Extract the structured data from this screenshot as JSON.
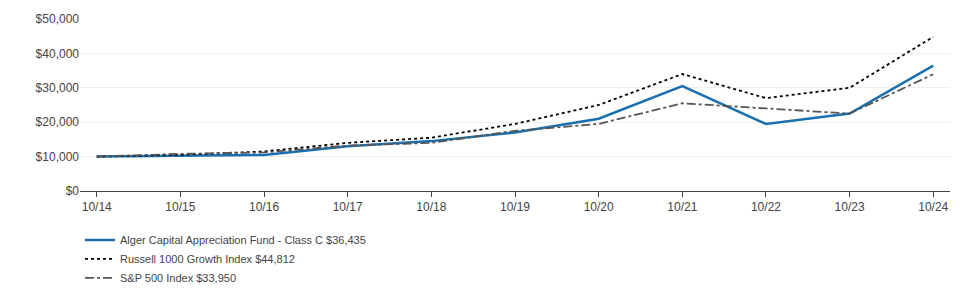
{
  "chart_data": {
    "type": "line",
    "categories": [
      "10/14",
      "10/15",
      "10/16",
      "10/17",
      "10/18",
      "10/19",
      "10/20",
      "10/21",
      "10/22",
      "10/23",
      "10/24"
    ],
    "series": [
      {
        "name": "Alger Capital Appreciation Fund - Class C $36,435",
        "color": "#1a6faf",
        "line_style": "solid",
        "values": [
          10000,
          10200,
          10500,
          13000,
          14500,
          17000,
          21000,
          30500,
          19500,
          22500,
          36435
        ]
      },
      {
        "name": "Russell 1000 Growth Index $44,812",
        "color": "#000000",
        "line_style": "dotted",
        "values": [
          10000,
          10500,
          11500,
          14000,
          15500,
          19500,
          25000,
          34000,
          27000,
          30000,
          44812
        ]
      },
      {
        "name": "S&P 500 Index $33,950",
        "color": "#555555",
        "line_style": "dashdot",
        "values": [
          10000,
          10800,
          11200,
          13200,
          14000,
          17500,
          19500,
          25500,
          24000,
          22500,
          33950
        ]
      }
    ],
    "ylim": [
      0,
      50000
    ],
    "yticks": [
      {
        "value": 0,
        "label": "$0"
      },
      {
        "value": 10000,
        "label": "$10,000"
      },
      {
        "value": 20000,
        "label": "$20,000"
      },
      {
        "value": 30000,
        "label": "$30,000"
      },
      {
        "value": 40000,
        "label": "$40,000"
      },
      {
        "value": 50000,
        "label": "$50,000"
      }
    ],
    "grid": true,
    "legend": "bottom"
  }
}
